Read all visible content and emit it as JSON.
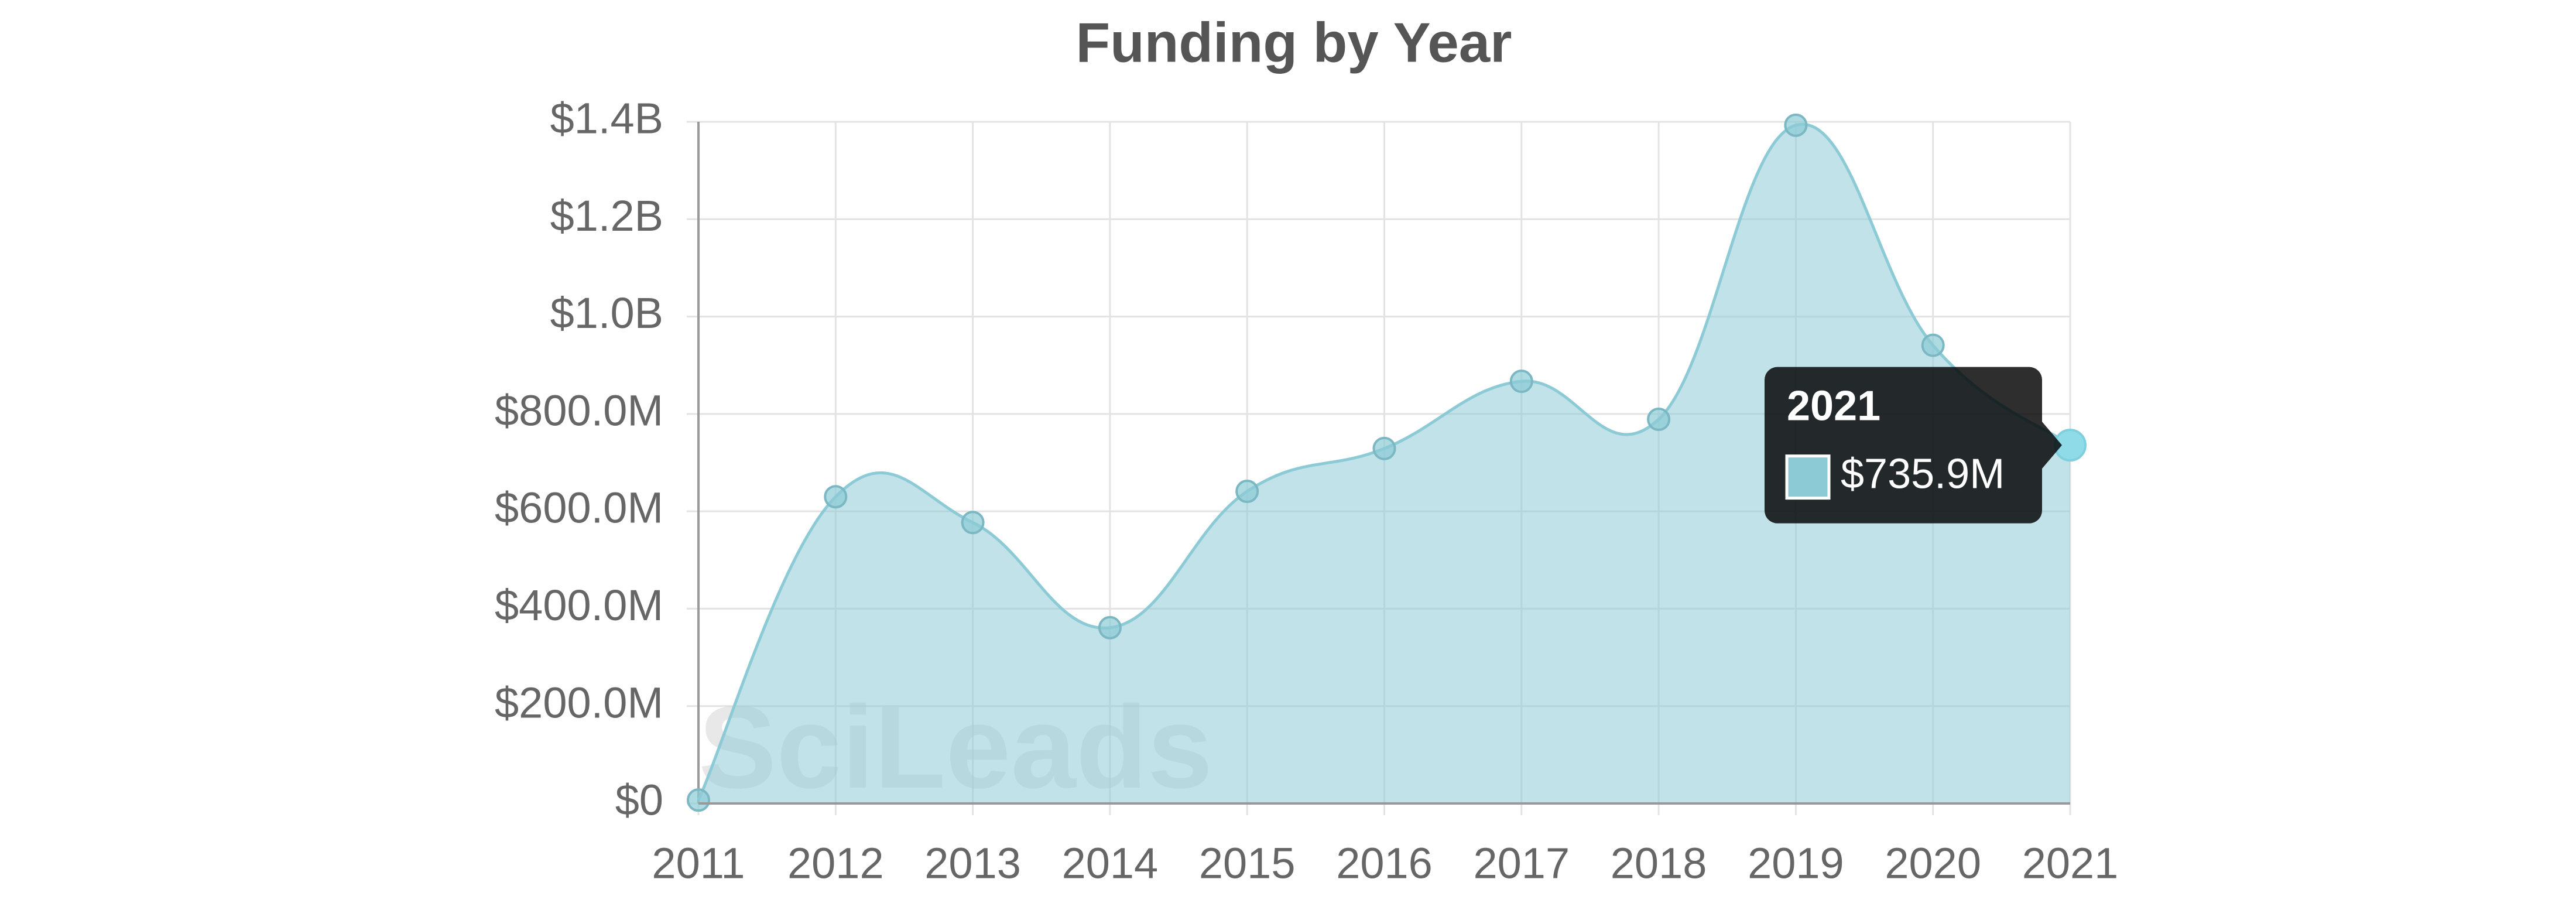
{
  "chart_data": {
    "type": "area",
    "title": "Funding by Year",
    "categories": [
      "2011",
      "2012",
      "2013",
      "2014",
      "2015",
      "2016",
      "2017",
      "2018",
      "2019",
      "2020",
      "2021"
    ],
    "values": [
      7000000,
      630000000,
      577000000,
      361000000,
      641000000,
      729000000,
      867000000,
      789000000,
      1393000000,
      941000000,
      735900000
    ],
    "color": "#8ccad5",
    "ylim": [
      0,
      1400000000
    ],
    "yticks": [
      {
        "value": 0,
        "label": "$0"
      },
      {
        "value": 200000000,
        "label": "$200.0M"
      },
      {
        "value": 400000000,
        "label": "$400.0M"
      },
      {
        "value": 600000000,
        "label": "$600.0M"
      },
      {
        "value": 800000000,
        "label": "$800.0M"
      },
      {
        "value": 1000000000,
        "label": "$1.0B"
      },
      {
        "value": 1200000000,
        "label": "$1.2B"
      },
      {
        "value": 1400000000,
        "label": "$1.4B"
      }
    ],
    "grid": true,
    "watermark": "SciLeads",
    "tooltip": {
      "title": "2021",
      "value_label": "$735.9M"
    }
  }
}
